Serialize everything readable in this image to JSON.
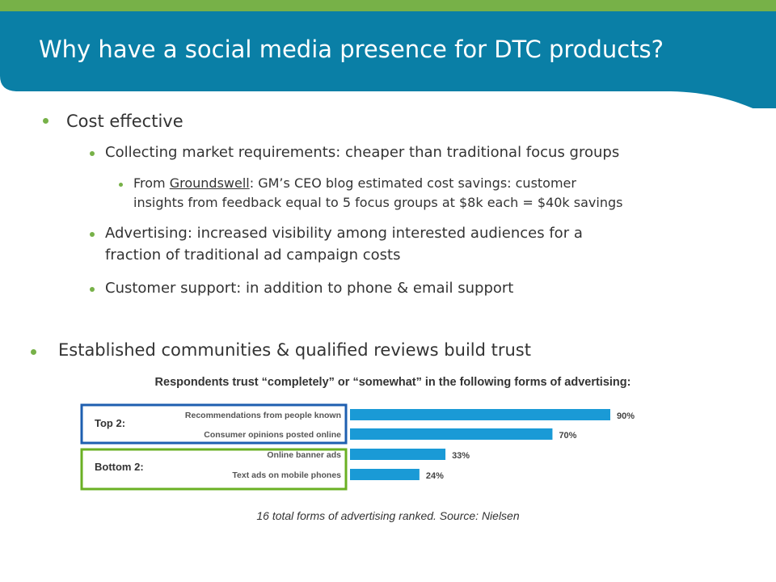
{
  "slide": {
    "title": "Why have a social media presence for DTC products?",
    "colors": {
      "accent_green": "#77b148",
      "header_blue": "#0a7fa6",
      "bar_blue": "#1a9ad6",
      "top_box": "#1e5fb0",
      "bottom_box": "#6ab023"
    }
  },
  "bullets": {
    "cost": {
      "label": "Cost effective",
      "market": "Collecting market requirements: cheaper than traditional focus groups",
      "groundswell": {
        "prefix": "From ",
        "link": "Groundswell",
        "line1_rest": ": GM’s CEO blog estimated cost savings: customer",
        "line2": "insights from feedback equal to 5 focus groups at $8k each = $40k savings"
      },
      "advertising_line1": "Advertising: increased visibility among interested audiences for a",
      "advertising_line2": "fraction of traditional ad campaign costs",
      "support": "Customer support: in addition to phone & email support"
    },
    "trust": {
      "label": "Established communities & qualified reviews build trust"
    }
  },
  "chart_caption": "Respondents trust “completely” or “somewhat” in the following forms of advertising:",
  "chart_data": {
    "type": "bar",
    "orientation": "horizontal",
    "categories": [
      "Recommendations from people known",
      "Consumer opinions posted online",
      "Online banner ads",
      "Text ads on mobile phones"
    ],
    "values": [
      90,
      70,
      33,
      24
    ],
    "value_labels": [
      "90%",
      "70%",
      "33%",
      "24%"
    ],
    "xlim": [
      0,
      100
    ],
    "groups": [
      {
        "label": "Top 2:",
        "categories": [
          "Recommendations from people known",
          "Consumer opinions posted online"
        ]
      },
      {
        "label": "Bottom 2:",
        "categories": [
          "Online banner ads",
          "Text ads on mobile phones"
        ]
      }
    ]
  },
  "source_note": "16 total forms of advertising ranked. Source: Nielsen"
}
